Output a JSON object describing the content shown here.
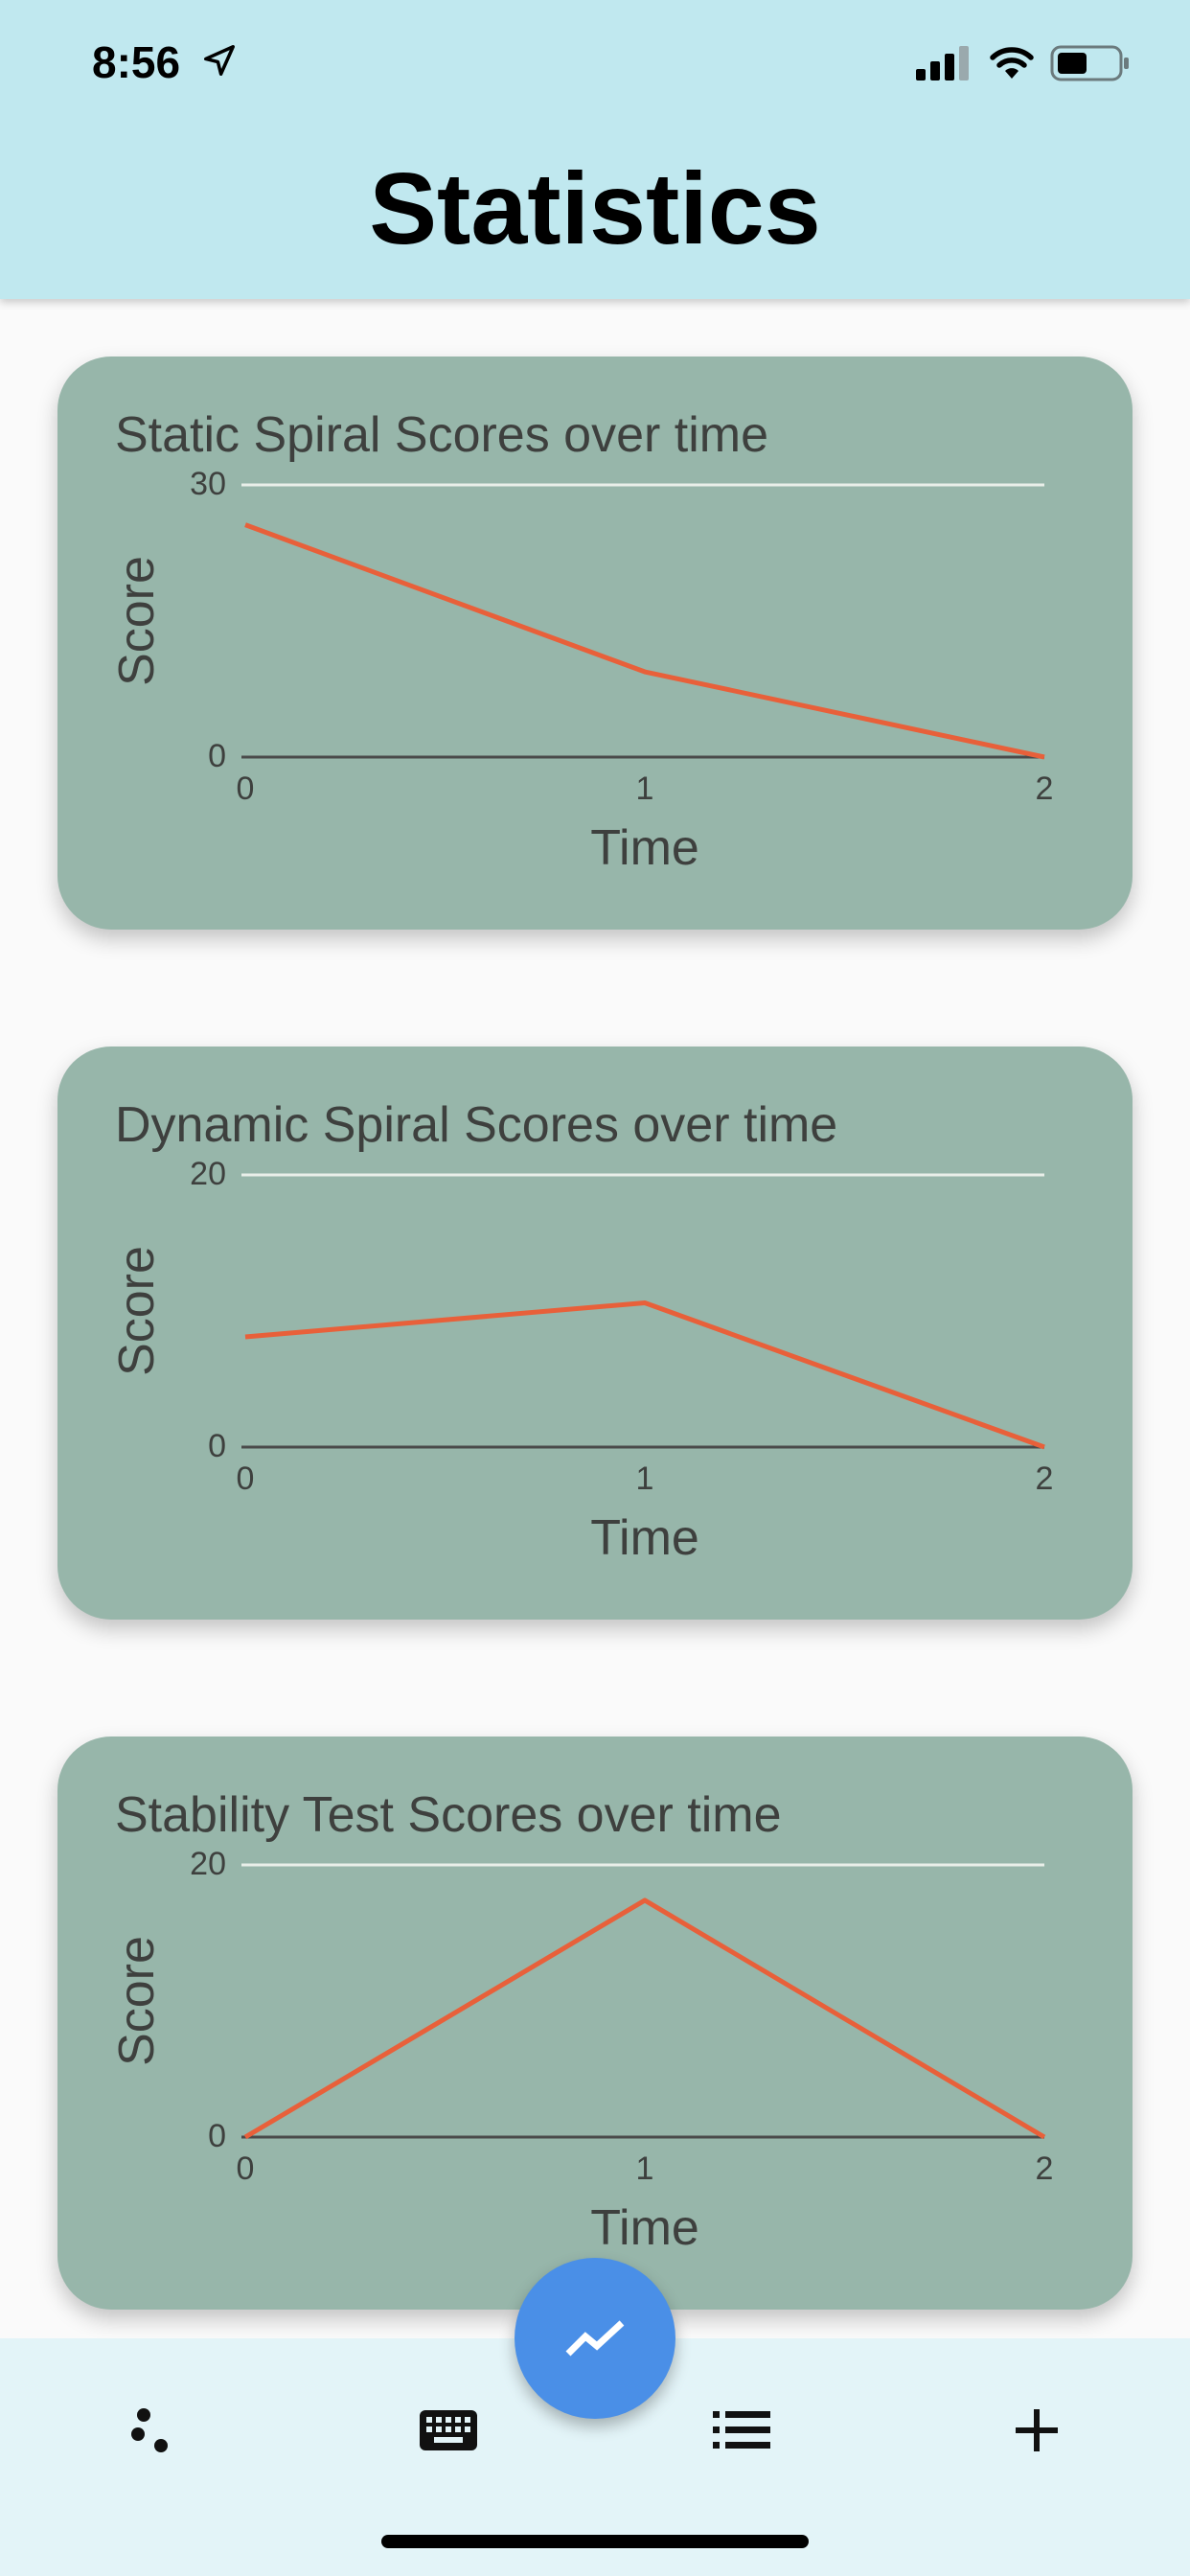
{
  "status_bar": {
    "time": "8:56",
    "icons": [
      "location-arrow-icon",
      "cellular-signal-icon",
      "wifi-icon",
      "battery-icon"
    ]
  },
  "header": {
    "title": "Statistics"
  },
  "colors": {
    "header_bg": "#c0e8ef",
    "card_bg": "#97b6aa",
    "line": "#e8603a",
    "fab": "#4a8fe7",
    "bottom_bar": "#e3f4f8"
  },
  "chart_data": [
    {
      "type": "line",
      "title": "Static Spiral Scores over time",
      "xlabel": "Time",
      "ylabel": "Score",
      "x": [
        0,
        1,
        2
      ],
      "xticks": [
        "0",
        "1",
        "2"
      ],
      "yticks": [
        "0",
        "30"
      ],
      "ylim": [
        0,
        30
      ],
      "series": [
        {
          "values": [
            25.6,
            9.4,
            0
          ]
        }
      ]
    },
    {
      "type": "line",
      "title": "Dynamic Spiral Scores over time",
      "xlabel": "Time",
      "ylabel": "Score",
      "x": [
        0,
        1,
        2
      ],
      "xticks": [
        "0",
        "1",
        "2"
      ],
      "yticks": [
        "0",
        "20"
      ],
      "ylim": [
        0,
        20
      ],
      "series": [
        {
          "values": [
            8.1,
            10.6,
            0
          ]
        }
      ]
    },
    {
      "type": "line",
      "title": "Stability Test Scores over time",
      "xlabel": "Time",
      "ylabel": "Score",
      "x": [
        0,
        1,
        2
      ],
      "xticks": [
        "0",
        "1",
        "2"
      ],
      "yticks": [
        "0",
        "20"
      ],
      "ylim": [
        0,
        20
      ],
      "series": [
        {
          "values": [
            0,
            17.4,
            0
          ]
        }
      ]
    }
  ],
  "bottom_nav": {
    "items": [
      {
        "icon": "scatter-dots-icon"
      },
      {
        "icon": "keyboard-icon"
      },
      {
        "icon": "trending-line-icon",
        "active": true
      },
      {
        "icon": "list-icon"
      },
      {
        "icon": "plus-icon"
      }
    ]
  }
}
